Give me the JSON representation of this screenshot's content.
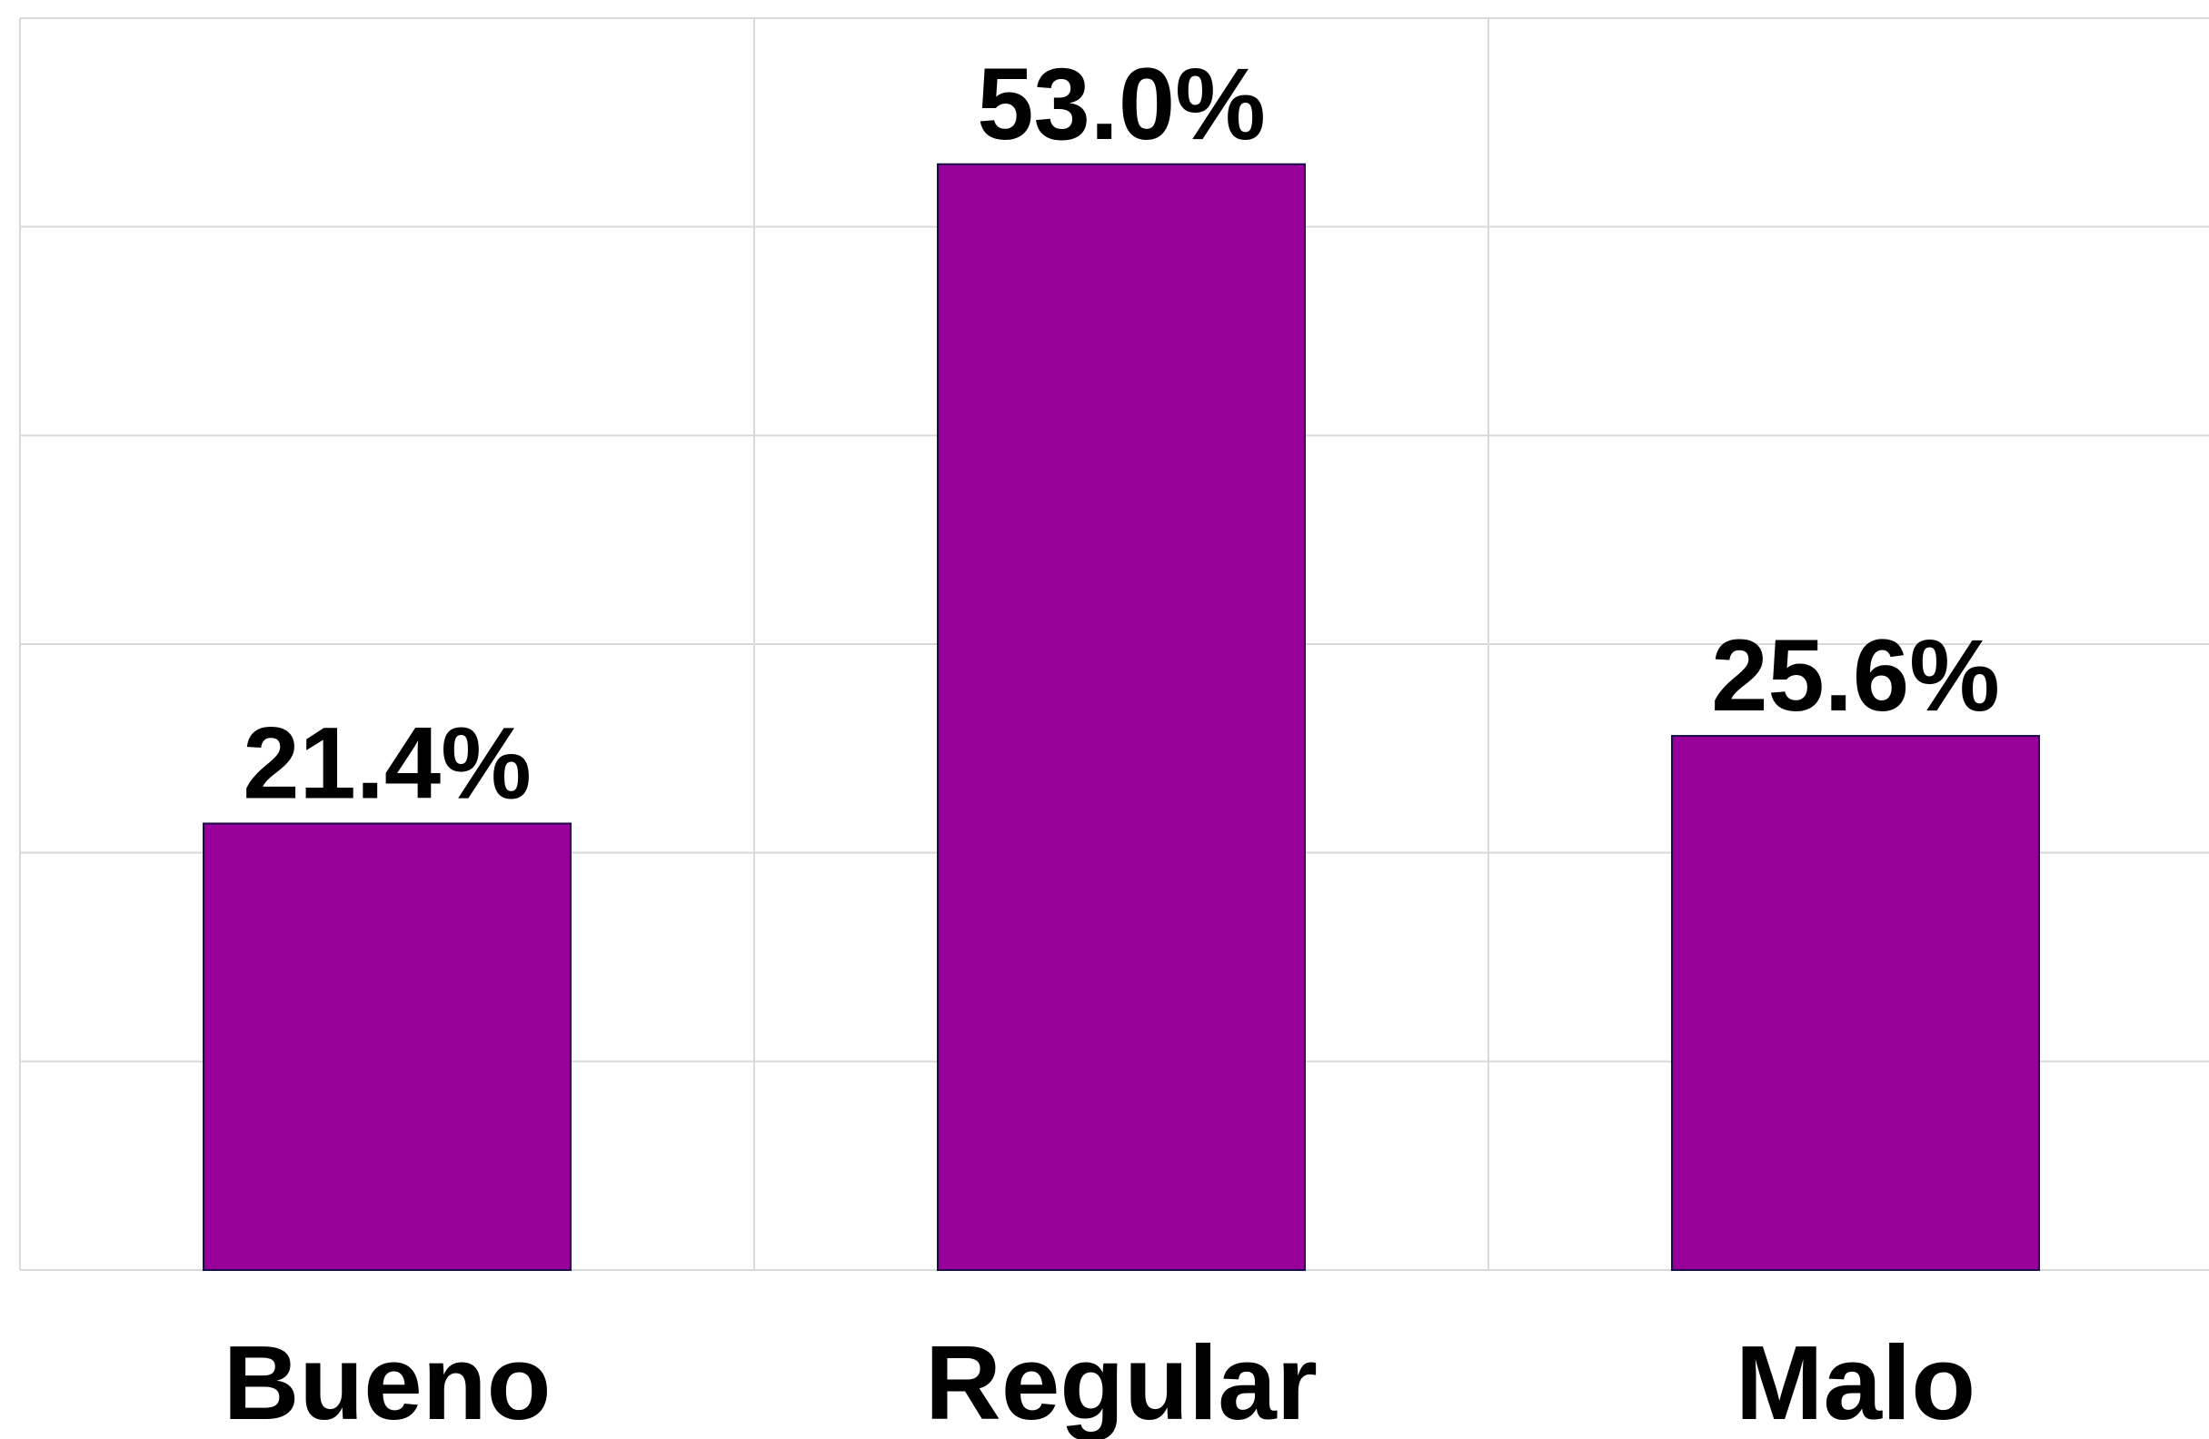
{
  "chart_data": {
    "type": "bar",
    "categories": [
      "Bueno",
      "Regular",
      "Malo"
    ],
    "values": [
      21.4,
      53.0,
      25.6
    ],
    "value_labels": [
      "21.4%",
      "53.0%",
      "25.6%"
    ],
    "title": "",
    "xlabel": "",
    "ylabel": "",
    "ylim": [
      0,
      60
    ],
    "grid": true,
    "legend": "none",
    "bar_color": "#990099"
  }
}
